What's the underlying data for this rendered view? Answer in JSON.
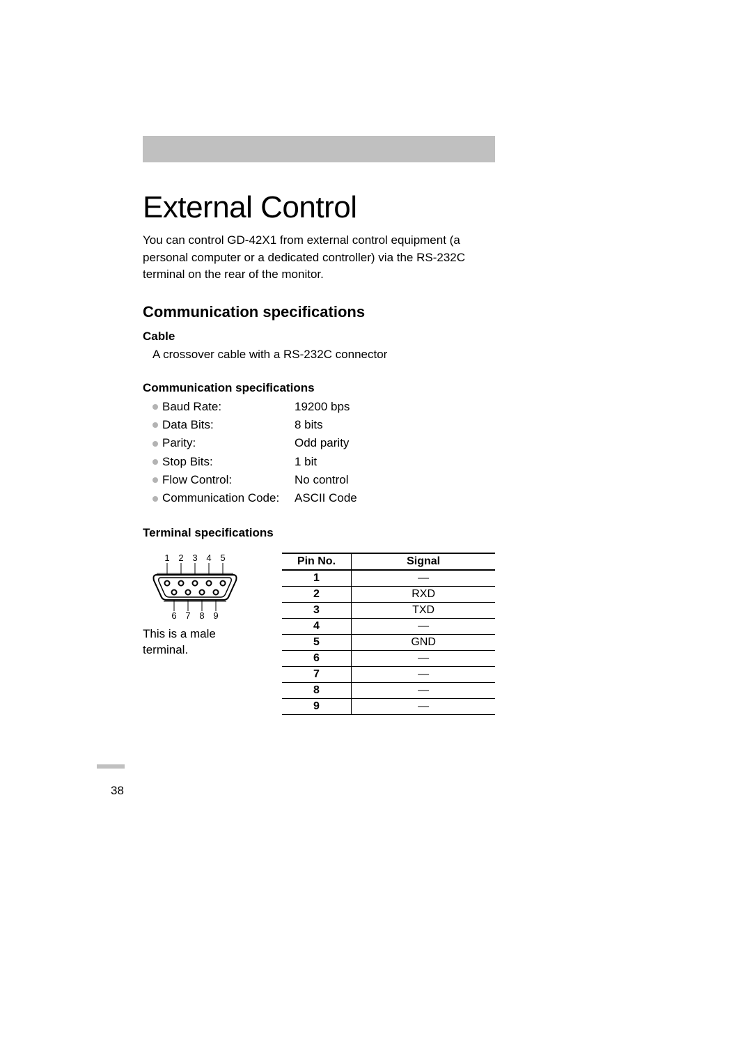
{
  "title": "External Control",
  "intro": "You can control GD-42X1 from external control equipment (a personal computer or a dedicated controller) via the RS-232C terminal on the rear of the monitor.",
  "section_heading": "Communication specifications",
  "cable": {
    "heading": "Cable",
    "text": "A crossover cable with a RS-232C connector"
  },
  "comm_spec": {
    "heading": "Communication specifications",
    "items": [
      {
        "label": "Baud Rate:",
        "value": "19200 bps"
      },
      {
        "label": "Data Bits:",
        "value": "8 bits"
      },
      {
        "label": "Parity:",
        "value": "Odd parity"
      },
      {
        "label": "Stop Bits:",
        "value": "1 bit"
      },
      {
        "label": "Flow Control:",
        "value": "No control"
      },
      {
        "label": "Communication Code:",
        "value": "ASCII Code"
      }
    ]
  },
  "terminal": {
    "heading": "Terminal specifications",
    "top_labels": [
      "1",
      "2",
      "3",
      "4",
      "5"
    ],
    "bottom_labels": [
      "6",
      "7",
      "8",
      "9"
    ],
    "caption": "This is a male terminal.",
    "table": {
      "headers": [
        "Pin No.",
        "Signal"
      ],
      "rows": [
        [
          "1",
          "—"
        ],
        [
          "2",
          "RXD"
        ],
        [
          "3",
          "TXD"
        ],
        [
          "4",
          "—"
        ],
        [
          "5",
          "GND"
        ],
        [
          "6",
          "—"
        ],
        [
          "7",
          "—"
        ],
        [
          "8",
          "—"
        ],
        [
          "9",
          "—"
        ]
      ]
    }
  },
  "page_number": "38",
  "colors": {
    "gray_bar": "#c0c0c0",
    "bullet": "#b3b3b3",
    "text": "#000000",
    "bg": "#ffffff"
  }
}
